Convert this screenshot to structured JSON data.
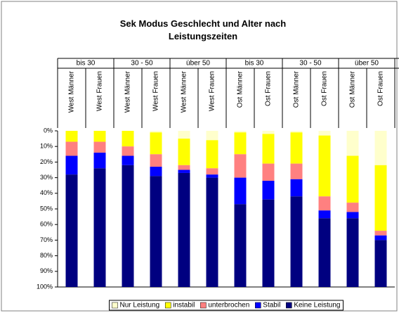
{
  "chart_data": {
    "type": "stacked_bar",
    "title": "Sek Modus Geschlecht und Alter nach Leistungszeiten",
    "groups": [
      "bis 30",
      "30 - 50",
      "über 50",
      "bis 30",
      "30 - 50",
      "über 50"
    ],
    "categories": [
      "West Männer",
      "West Frauen",
      "West Männer",
      "West Frauen",
      "West Männer",
      "West Frauen",
      "Ost Männer",
      "Ost Frauen",
      "Ost Männer",
      "Ost Frauen",
      "Ost Männer",
      "Ost Frauen"
    ],
    "series": [
      {
        "name": "Nur Leistung",
        "color": "#ffffcc",
        "values": [
          0,
          0,
          0,
          1,
          5,
          6,
          1,
          2,
          1,
          3,
          16,
          22
        ]
      },
      {
        "name": "instabil",
        "color": "#ffff00",
        "values": [
          7,
          7,
          10,
          14,
          17,
          18,
          14,
          19,
          20,
          39,
          30,
          42
        ]
      },
      {
        "name": "unterbrochen",
        "color": "#ff8080",
        "values": [
          9,
          7,
          6,
          8,
          3,
          4,
          15,
          11,
          10,
          9,
          6,
          3
        ]
      },
      {
        "name": "Stabil",
        "color": "#0000ff",
        "values": [
          12,
          10,
          6,
          6,
          2,
          2,
          17,
          12,
          11,
          5,
          4,
          3
        ]
      },
      {
        "name": "Keine Leistung",
        "color": "#000080",
        "values": [
          72,
          76,
          78,
          71,
          73,
          70,
          53,
          56,
          58,
          44,
          44,
          30
        ]
      }
    ],
    "ylim": [
      0,
      100
    ],
    "y_inverted": true,
    "yticks": [
      {
        "value": 0,
        "label": "0%"
      },
      {
        "value": 10,
        "label": "10%"
      },
      {
        "value": 20,
        "label": "20%"
      },
      {
        "value": 30,
        "label": "30%"
      },
      {
        "value": 40,
        "label": "40%"
      },
      {
        "value": 50,
        "label": "50%"
      },
      {
        "value": 60,
        "label": "60%"
      },
      {
        "value": 70,
        "label": "70%"
      },
      {
        "value": 80,
        "label": "80%"
      },
      {
        "value": 90,
        "label": "90%"
      },
      {
        "value": 100,
        "label": "100%"
      }
    ],
    "legend": "bottom"
  }
}
